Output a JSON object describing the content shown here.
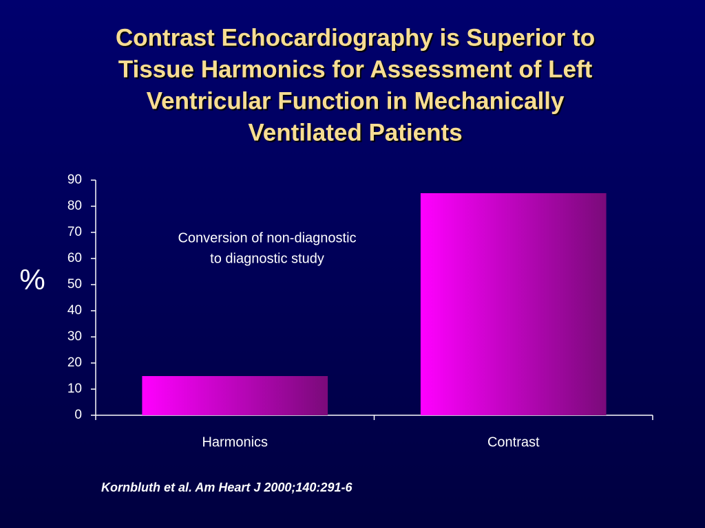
{
  "chart_data": {
    "type": "bar",
    "title": [
      "Contrast Echocardiography is Superior to",
      "Tissue Harmonics for Assessment of Left",
      "Ventricular Function in Mechanically",
      "Ventilated Patients"
    ],
    "annotation": [
      "Conversion of non-diagnostic",
      "to  diagnostic study"
    ],
    "y_label": "%",
    "categories": [
      "Harmonics",
      "Contrast"
    ],
    "values": [
      15,
      85
    ],
    "color": [
      "#ff00ff",
      "#7a0a7a"
    ],
    "ylim": [
      0,
      90
    ],
    "yticks": [
      0,
      10,
      20,
      30,
      40,
      50,
      60,
      70,
      80,
      90
    ],
    "source": "Kornbluth et al.  Am Heart J 2000;140:291-6"
  }
}
